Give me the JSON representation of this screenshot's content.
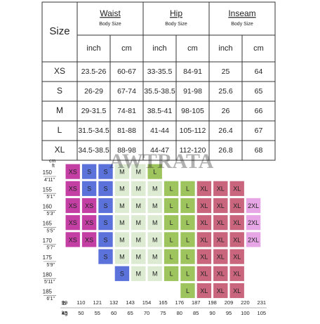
{
  "table": {
    "corner": "Size",
    "groups": [
      {
        "name": "Waist",
        "note": "Body Size"
      },
      {
        "name": "Hip",
        "note": "Body Size"
      },
      {
        "name": "Inseam",
        "note": "Body Size"
      }
    ],
    "units": [
      "inch",
      "cm",
      "inch",
      "cm",
      "inch",
      "cm"
    ],
    "rows": [
      [
        "XS",
        "23.5-26",
        "60-67",
        "33-35.5",
        "84-91",
        "25",
        "64"
      ],
      [
        "S",
        "26-29",
        "67-74",
        "35.5-38.5",
        "91-98",
        "25.6",
        "65"
      ],
      [
        "M",
        "29-31.5",
        "74-81",
        "38.5-41",
        "98-105",
        "26",
        "66"
      ],
      [
        "L",
        "31.5-34.5",
        "81-88",
        "41-44",
        "105-112",
        "26.4",
        "67"
      ],
      [
        "XL",
        "34.5-38.5",
        "88-98",
        "44-47",
        "112-120",
        "26.8",
        "68"
      ]
    ]
  },
  "grid": {
    "watermark": "AWTRATA",
    "height_header": [
      "cm",
      "ft"
    ],
    "heights": [
      {
        "cm": "150",
        "ft": "4'11\""
      },
      {
        "cm": "155",
        "ft": "5'1\""
      },
      {
        "cm": "160",
        "ft": "5'3\""
      },
      {
        "cm": "165",
        "ft": "5'5\""
      },
      {
        "cm": "170",
        "ft": "5'7\""
      },
      {
        "cm": "175",
        "ft": "5'9\""
      },
      {
        "cm": "180",
        "ft": "5'11\""
      },
      {
        "cm": "185",
        "ft": "6'1\""
      }
    ],
    "weight_units": [
      "lb",
      "kg"
    ],
    "lb": [
      "99",
      "110",
      "121",
      "132",
      "143",
      "154",
      "165",
      "176",
      "187",
      "198",
      "209",
      "220",
      "231"
    ],
    "kg": [
      "45",
      "50",
      "55",
      "60",
      "65",
      "70",
      "75",
      "80",
      "85",
      "90",
      "95",
      "100",
      "105"
    ],
    "cells": [
      [
        "XS",
        "S",
        "S",
        "M",
        "M",
        "L"
      ],
      [
        "XS",
        "S",
        "S",
        "M",
        "M",
        "M",
        "L",
        "L",
        "XL",
        "XL",
        "XL"
      ],
      [
        "XS",
        "XS",
        "S",
        "M",
        "M",
        "M",
        "L",
        "L",
        "XL",
        "XL",
        "XL",
        "2XL"
      ],
      [
        "XS",
        "XS",
        "S",
        "M",
        "M",
        "M",
        "L",
        "L",
        "XL",
        "XL",
        "XL",
        "2XL"
      ],
      [
        "XS",
        "XS",
        "S",
        "M",
        "M",
        "M",
        "L",
        "L",
        "XL",
        "XL",
        "XL",
        "2XL"
      ],
      [
        null,
        null,
        "S",
        "M",
        "M",
        "M",
        "L",
        "L",
        "XL",
        "XL",
        "XL"
      ],
      [
        null,
        null,
        null,
        "S",
        "M",
        "M",
        "L",
        "L",
        "XL",
        "XL",
        "XL"
      ],
      [
        null,
        null,
        null,
        null,
        null,
        null,
        null,
        "L",
        "XL",
        "XL",
        "XL"
      ]
    ]
  }
}
